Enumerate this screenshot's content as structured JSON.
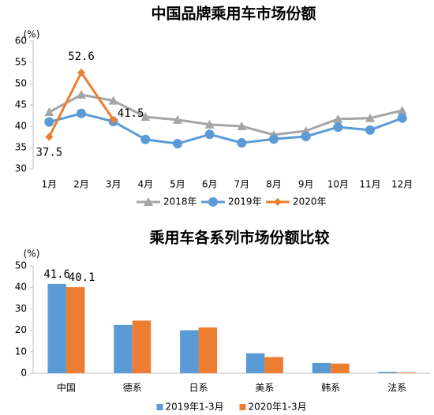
{
  "chart_data": [
    {
      "type": "line",
      "title": "中国品牌乘用车市场份额",
      "y_label": "(%)",
      "categories": [
        "1月",
        "2月",
        "3月",
        "4月",
        "5月",
        "6月",
        "7月",
        "8月",
        "9月",
        "10月",
        "11月",
        "12月"
      ],
      "ylim": [
        30,
        60
      ],
      "yticks": [
        30,
        35,
        40,
        45,
        50,
        55,
        60
      ],
      "series": [
        {
          "name": "2018年",
          "color": "#a5a5a5",
          "marker": "triangle",
          "values": [
            43.3,
            47.4,
            46,
            42.2,
            41.5,
            40.4,
            40,
            38,
            38.9,
            41.7,
            41.9,
            43.7
          ]
        },
        {
          "name": "2019年",
          "color": "#5b9bd5",
          "marker": "circle",
          "values": [
            41,
            43,
            41.1,
            36.9,
            35.9,
            38.1,
            36.1,
            37,
            37.6,
            39.8,
            39.1,
            41.9
          ]
        },
        {
          "name": "2020年",
          "color": "#ed7d31",
          "marker": "diamond",
          "labels": true,
          "values": [
            37.5,
            52.6,
            41.5,
            null,
            null,
            null,
            null,
            null,
            null,
            null,
            null,
            null
          ]
        }
      ]
    },
    {
      "type": "bar",
      "title": "乘用车各系列市场份额比较",
      "y_label": "(%)",
      "categories": [
        "中国",
        "德系",
        "日系",
        "美系",
        "韩系",
        "法系"
      ],
      "ylim": [
        0,
        50
      ],
      "yticks": [
        0,
        10,
        20,
        30,
        40,
        50
      ],
      "series": [
        {
          "name": "2019年1-3月",
          "color": "#5b9bd5",
          "values": [
            41.6,
            22.5,
            20,
            9.3,
            4.8,
            0.6
          ]
        },
        {
          "name": "2020年1-3月",
          "color": "#ed7d31",
          "values": [
            40.1,
            24.5,
            21.3,
            7.5,
            4.5,
            0.3
          ]
        }
      ]
    }
  ]
}
